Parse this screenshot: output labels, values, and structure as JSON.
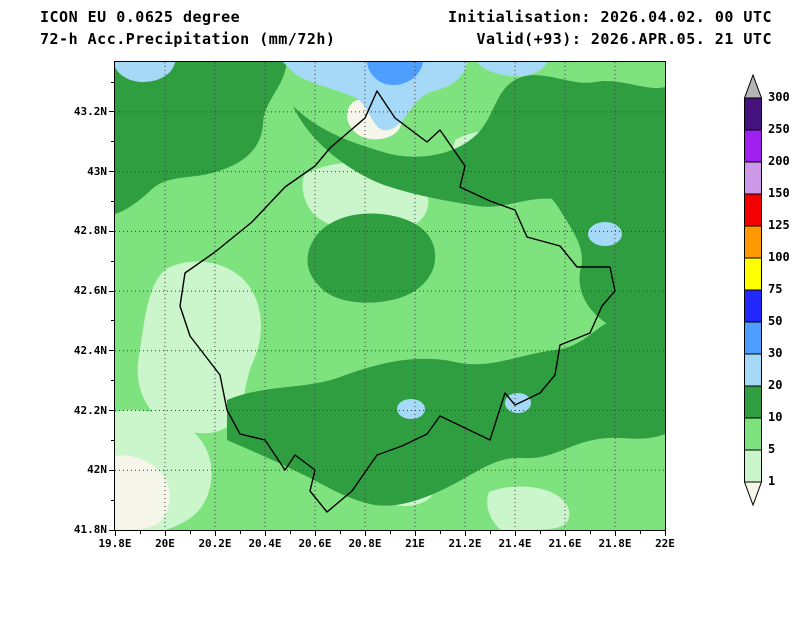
{
  "header": {
    "model_line": "ICON EU 0.0625 degree",
    "product_line": "72-h Acc.Precipitation (mm/72h)",
    "init_line": "Initialisation: 2026.04.02. 00 UTC",
    "valid_line": "Valid(+93): 2026.APR.05. 21 UTC"
  },
  "map": {
    "lat_ticks": [
      {
        "value": 43.2,
        "label": "43.2N"
      },
      {
        "value": 43.0,
        "label": "43N"
      },
      {
        "value": 42.8,
        "label": "42.8N"
      },
      {
        "value": 42.6,
        "label": "42.6N"
      },
      {
        "value": 42.4,
        "label": "42.4N"
      },
      {
        "value": 42.2,
        "label": "42.2N"
      },
      {
        "value": 42.0,
        "label": "42N"
      },
      {
        "value": 41.8,
        "label": "41.8N"
      }
    ],
    "lon_ticks": [
      {
        "value": 19.8,
        "label": "19.8E"
      },
      {
        "value": 20.0,
        "label": "20E"
      },
      {
        "value": 20.2,
        "label": "20.2E"
      },
      {
        "value": 20.4,
        "label": "20.4E"
      },
      {
        "value": 20.6,
        "label": "20.6E"
      },
      {
        "value": 20.8,
        "label": "20.8E"
      },
      {
        "value": 21.0,
        "label": "21E"
      },
      {
        "value": 21.2,
        "label": "21.2E"
      },
      {
        "value": 21.4,
        "label": "21.4E"
      },
      {
        "value": 21.6,
        "label": "21.6E"
      },
      {
        "value": 21.8,
        "label": "21.8E"
      },
      {
        "value": 22.0,
        "label": "22E"
      }
    ],
    "grid_lat_values": [
      43.2,
      43.0,
      42.8,
      42.6,
      42.4,
      42.2,
      42.0
    ],
    "grid_lon_values": [
      20.0,
      20.2,
      20.4,
      20.6,
      20.8,
      21.0,
      21.2,
      21.4,
      21.6,
      21.8
    ]
  },
  "palette": {
    "below_1": "#f5f5ea",
    "r1_5": "#cbf6cb",
    "r5_10": "#7ee27e",
    "r10_20": "#2f9e41",
    "r20_30": "#a6d9f8",
    "r30_50": "#4d9eff",
    "outline": "#000000"
  },
  "colorbar": {
    "levels": [
      300,
      250,
      200,
      150,
      125,
      100,
      75,
      50,
      30,
      20,
      10,
      5,
      1
    ],
    "colors_top_to_bottom": [
      "#b4b4b4",
      "#46127d",
      "#a020f0",
      "#cc99e8",
      "#f50000",
      "#ff9900",
      "#ffff00",
      "#2328ff",
      "#4d9eff",
      "#a6d9f8",
      "#2f9e41",
      "#7ee27e",
      "#cbf6cb",
      "#f5f5ea"
    ]
  }
}
